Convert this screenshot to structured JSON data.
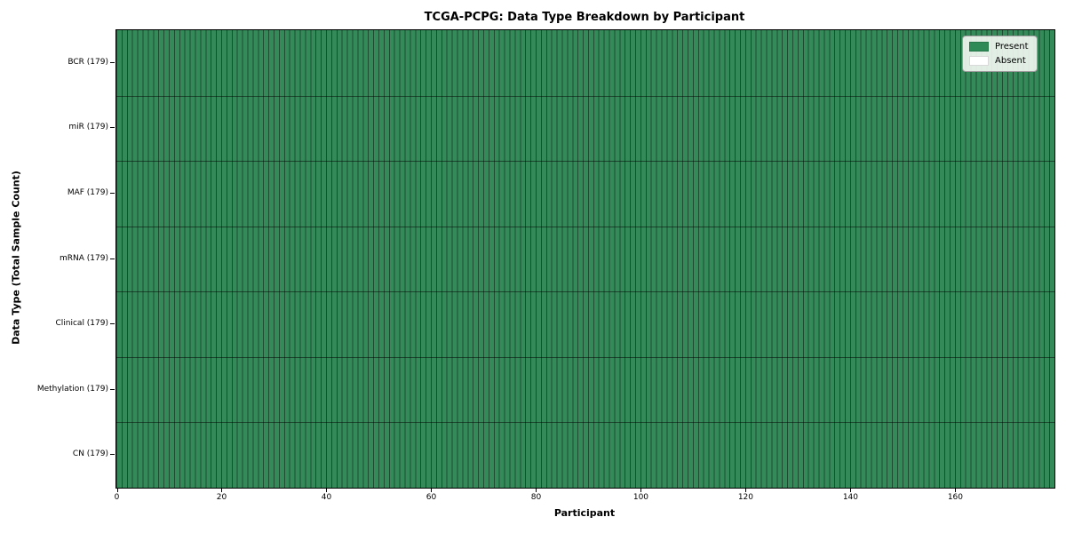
{
  "chart_data": {
    "type": "heatmap",
    "title": "TCGA-PCPG: Data Type Breakdown by Participant",
    "xlabel": "Participant",
    "ylabel": "Data Type (Total Sample Count)",
    "categories": [
      "BCR (179)",
      "miR (179)",
      "MAF (179)",
      "mRNA (179)",
      "Clinical (179)",
      "Methylation (179)",
      "CN (179)"
    ],
    "rows": [
      {
        "label": "BCR (179)",
        "present_count": 179,
        "absent_count": 0
      },
      {
        "label": "miR (179)",
        "present_count": 179,
        "absent_count": 0
      },
      {
        "label": "MAF (179)",
        "present_count": 179,
        "absent_count": 0
      },
      {
        "label": "mRNA (179)",
        "present_count": 179,
        "absent_count": 0
      },
      {
        "label": "Clinical (179)",
        "present_count": 179,
        "absent_count": 0
      },
      {
        "label": "Methylation (179)",
        "present_count": 179,
        "absent_count": 0
      },
      {
        "label": "CN (179)",
        "present_count": 179,
        "absent_count": 0
      }
    ],
    "n_participants": 179,
    "xlim": [
      0,
      179
    ],
    "x_ticks": [
      0,
      20,
      40,
      60,
      80,
      100,
      120,
      140,
      160
    ],
    "legend": [
      {
        "label": "Present",
        "color": "#2e8b57"
      },
      {
        "label": "Absent",
        "color": "#ffffff"
      }
    ],
    "legend_position": "upper right",
    "colors": {
      "present_cell": "#348a58",
      "absent_cell": "#ffffff",
      "cell_gridline": "rgba(0,0,0,0.45)",
      "row_separator": "rgba(0,0,0,0.5)",
      "frame": "#000000"
    },
    "grid": true
  }
}
